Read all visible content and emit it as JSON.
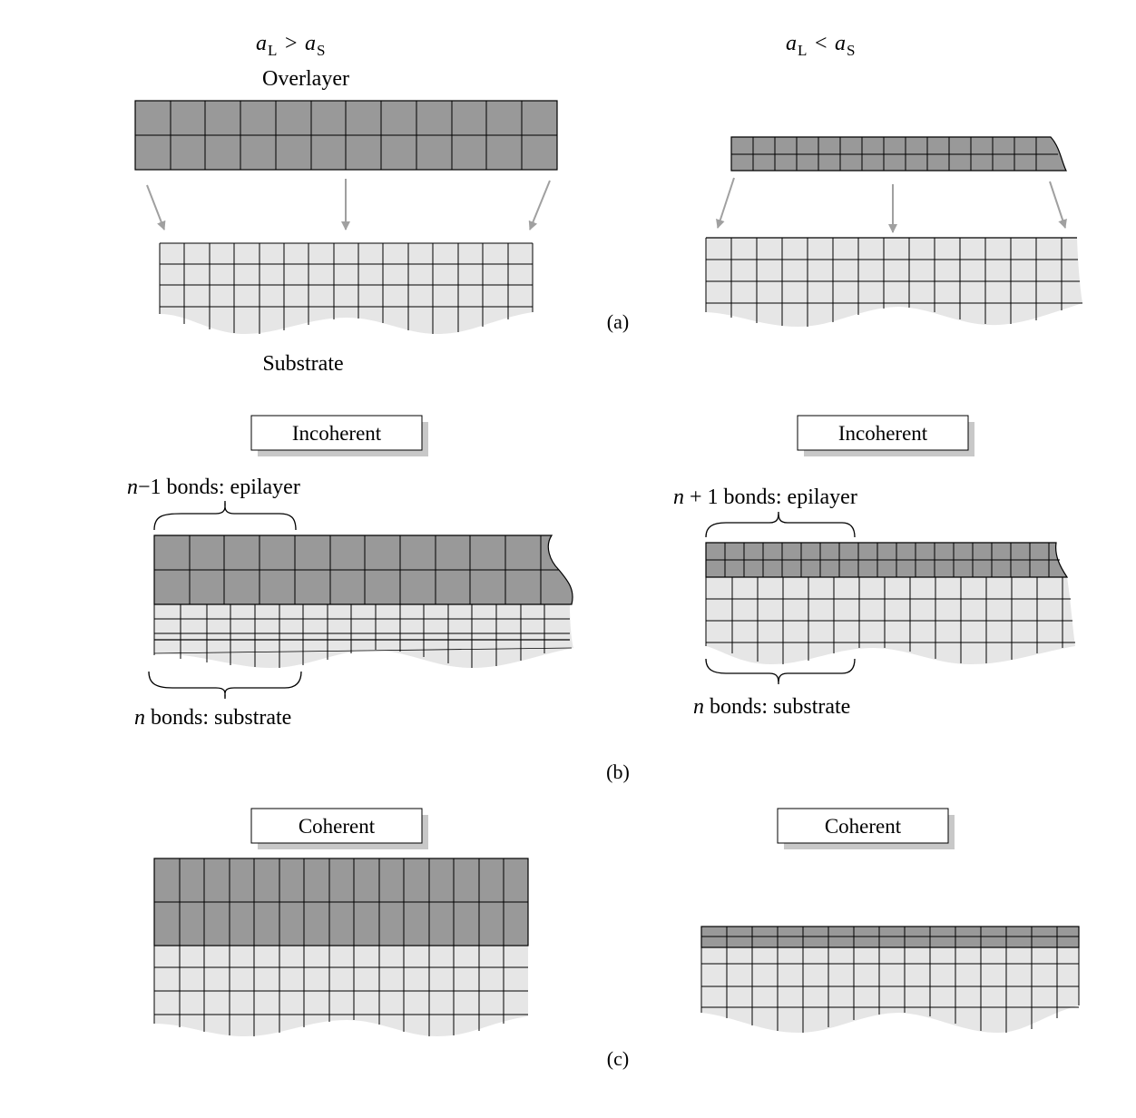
{
  "colors": {
    "overlayer": "#999999",
    "substrate": "#e6e6e6",
    "grid_line": "#000000",
    "arrow": "#a0a0a0",
    "box_shadow": "#c8c8c8"
  },
  "panel_a": {
    "label": "(a)",
    "left_condition": {
      "a": "a",
      "L": "L",
      "rel": ">",
      "a2": "a",
      "S": "S"
    },
    "right_condition": {
      "a": "a",
      "L": "L",
      "rel": "<",
      "a2": "a",
      "S": "S"
    },
    "overlayer_label": "Overlayer",
    "substrate_label": "Substrate"
  },
  "panel_b": {
    "label": "(b)",
    "left_title": "Incoherent",
    "right_title": "Incoherent",
    "left_top_n": "n",
    "left_top_text": "−1 bonds: epilayer",
    "left_bottom_n": "n",
    "left_bottom_text": " bonds: substrate",
    "right_top_n": "n",
    "right_top_text": " + 1 bonds: epilayer",
    "right_bottom_n": "n",
    "right_bottom_text": " bonds: substrate"
  },
  "panel_c": {
    "label": "(c)",
    "left_title": "Coherent",
    "right_title": "Coherent"
  }
}
